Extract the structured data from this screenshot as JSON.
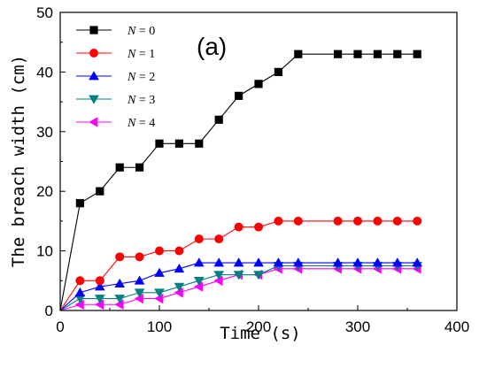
{
  "chart_data": {
    "type": "line",
    "panel_label": "(a)",
    "xlabel": "Time (s)",
    "ylabel": "The breach width (cm)",
    "xlim": [
      0,
      400
    ],
    "ylim": [
      0,
      50
    ],
    "xticks": [
      0,
      100,
      200,
      300,
      400
    ],
    "yticks": [
      0,
      10,
      20,
      30,
      40,
      50
    ],
    "grid": false,
    "legend_position": "top-left",
    "x": [
      0,
      20,
      40,
      60,
      80,
      100,
      120,
      140,
      160,
      180,
      200,
      220,
      240,
      280,
      300,
      320,
      340,
      360
    ],
    "series": [
      {
        "name": "N = 0",
        "var": "N",
        "val": " = 0",
        "color": "#000000",
        "marker": "square",
        "values": [
          0,
          18,
          20,
          24,
          24,
          28,
          28,
          28,
          32,
          36,
          38,
          40,
          43,
          43,
          43,
          43,
          43,
          43
        ]
      },
      {
        "name": "N = 1",
        "var": "N",
        "val": " = 1",
        "color": "#ff0000",
        "marker": "circle",
        "values": [
          0,
          5,
          5,
          9,
          9,
          10,
          10,
          12,
          12,
          14,
          14,
          15,
          15,
          15,
          15,
          15,
          15,
          15
        ]
      },
      {
        "name": "N = 2",
        "var": "N",
        "val": " = 2",
        "color": "#0000ff",
        "marker": "triangle-up",
        "values": [
          0,
          3,
          4,
          4.5,
          5,
          6.3,
          7,
          8,
          8,
          8,
          8,
          8,
          8,
          8,
          8,
          8,
          8,
          8
        ]
      },
      {
        "name": "N = 3",
        "var": "N",
        "val": " = 3",
        "color": "#008080",
        "marker": "triangle-down",
        "values": [
          0,
          2,
          2,
          2,
          3,
          3,
          4,
          5,
          6,
          6,
          6,
          7.5,
          7.5,
          7.5,
          7.5,
          7.5,
          7.5,
          7.5
        ]
      },
      {
        "name": "N = 4",
        "var": "N",
        "val": " = 4",
        "color": "#ff00ff",
        "marker": "triangle-left",
        "values": [
          0,
          1,
          1,
          1,
          2,
          2,
          3,
          4,
          5,
          6,
          6,
          7,
          7,
          7,
          7,
          7,
          7,
          7
        ]
      }
    ]
  }
}
